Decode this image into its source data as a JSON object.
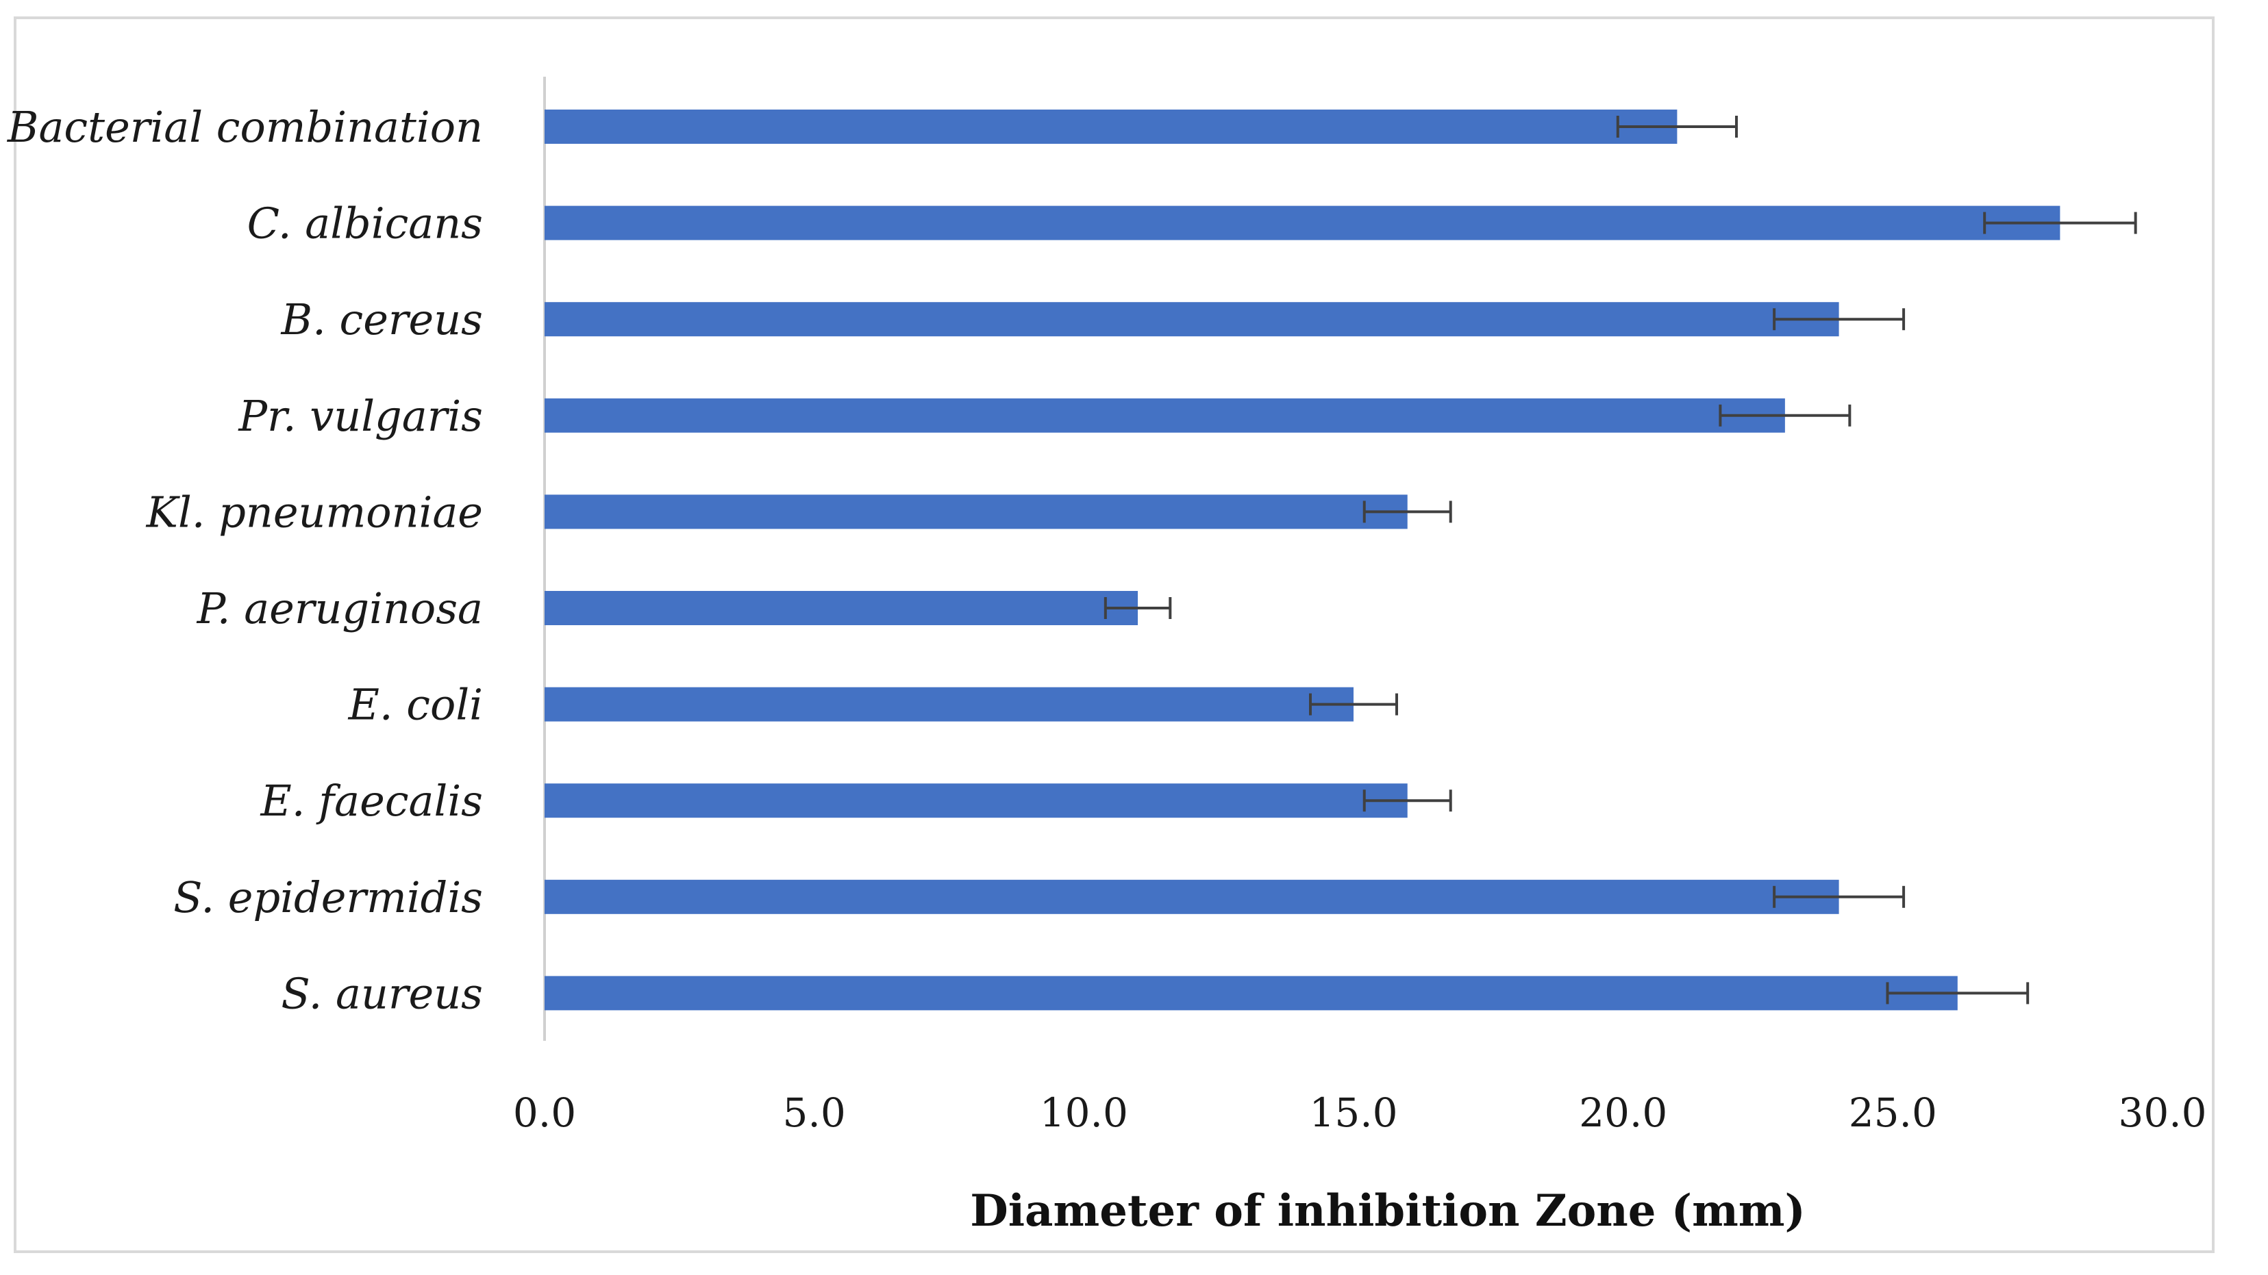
{
  "chart_data": {
    "type": "bar",
    "orientation": "horizontal",
    "title": "",
    "xlabel": "Diameter of inhibition Zone (mm)",
    "ylabel": "",
    "xlim": [
      0,
      30
    ],
    "x_ticks": [
      "0.0",
      "5.0",
      "10.0",
      "15.0",
      "20.0",
      "25.0",
      "30.0"
    ],
    "bar_color": "#4472c4",
    "grid": false,
    "legend": "none",
    "categories": [
      "Bacterial combination",
      "C. albicans",
      "B. cereus",
      "Pr. vulgaris",
      "Kl. pneumoniae",
      "P. aeruginosa",
      "E. coli",
      "E. faecalis",
      "S. epidermidis",
      "S. aureus"
    ],
    "values": [
      21.0,
      28.1,
      24.0,
      23.0,
      16.0,
      11.0,
      15.0,
      16.0,
      24.0,
      26.2
    ],
    "errors": [
      1.1,
      1.4,
      1.2,
      1.2,
      0.8,
      0.6,
      0.8,
      0.8,
      1.2,
      1.3
    ]
  }
}
